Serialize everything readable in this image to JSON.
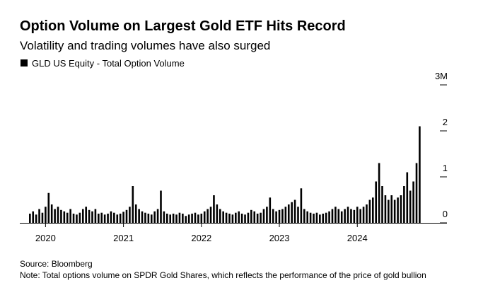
{
  "chart_data": {
    "type": "bar",
    "title": "Option Volume on Largest Gold ETF Hits Record",
    "subtitle": "Volatility and trading volumes have also surged",
    "source": "Source: Bloomberg",
    "note": "Note: Total options volume on SPDR Gold Shares, which reflects the performance of the price of gold bullion",
    "xlim": [
      2019.67,
      2025.15
    ],
    "xticks": [
      2020,
      2021,
      2022,
      2023,
      2024
    ],
    "ylim": [
      0,
      3
    ],
    "yticks": [
      0,
      1,
      2,
      {
        "value": 3,
        "label": "3M"
      }
    ],
    "series": [
      {
        "name": "GLD US Equity - Total Option Volume",
        "color": "#000000",
        "x": [
          2019.8,
          2019.84,
          2019.88,
          2019.92,
          2019.96,
          2020,
          2020.04,
          2020.08,
          2020.12,
          2020.16,
          2020.2,
          2020.24,
          2020.28,
          2020.32,
          2020.36,
          2020.4,
          2020.44,
          2020.48,
          2020.52,
          2020.56,
          2020.6,
          2020.64,
          2020.68,
          2020.72,
          2020.76,
          2020.8,
          2020.84,
          2020.88,
          2020.92,
          2020.96,
          2021,
          2021.04,
          2021.08,
          2021.12,
          2021.16,
          2021.2,
          2021.24,
          2021.28,
          2021.32,
          2021.36,
          2021.4,
          2021.44,
          2021.48,
          2021.52,
          2021.56,
          2021.6,
          2021.64,
          2021.68,
          2021.72,
          2021.76,
          2021.8,
          2021.84,
          2021.88,
          2021.92,
          2021.96,
          2022,
          2022.04,
          2022.08,
          2022.12,
          2022.16,
          2022.2,
          2022.24,
          2022.28,
          2022.32,
          2022.36,
          2022.4,
          2022.44,
          2022.48,
          2022.52,
          2022.56,
          2022.6,
          2022.64,
          2022.68,
          2022.72,
          2022.76,
          2022.8,
          2022.84,
          2022.88,
          2022.92,
          2022.96,
          2023,
          2023.04,
          2023.08,
          2023.12,
          2023.16,
          2023.2,
          2023.24,
          2023.28,
          2023.32,
          2023.36,
          2023.4,
          2023.44,
          2023.48,
          2023.52,
          2023.56,
          2023.6,
          2023.64,
          2023.68,
          2023.72,
          2023.76,
          2023.8,
          2023.84,
          2023.88,
          2023.92,
          2023.96,
          2024,
          2024.04,
          2024.08,
          2024.12,
          2024.16,
          2024.2,
          2024.24,
          2024.28,
          2024.32,
          2024.36,
          2024.4,
          2024.44,
          2024.48,
          2024.52,
          2024.56,
          2024.6,
          2024.64,
          2024.68,
          2024.72,
          2024.76,
          2024.8
        ],
        "values": [
          0.2,
          0.25,
          0.18,
          0.3,
          0.22,
          0.35,
          0.65,
          0.4,
          0.3,
          0.35,
          0.28,
          0.25,
          0.22,
          0.3,
          0.2,
          0.18,
          0.22,
          0.3,
          0.35,
          0.28,
          0.25,
          0.3,
          0.2,
          0.22,
          0.18,
          0.2,
          0.25,
          0.22,
          0.18,
          0.2,
          0.24,
          0.28,
          0.35,
          0.8,
          0.4,
          0.3,
          0.25,
          0.22,
          0.2,
          0.18,
          0.25,
          0.3,
          0.7,
          0.25,
          0.2,
          0.18,
          0.2,
          0.18,
          0.22,
          0.2,
          0.15,
          0.18,
          0.2,
          0.22,
          0.18,
          0.2,
          0.25,
          0.3,
          0.35,
          0.6,
          0.4,
          0.3,
          0.25,
          0.22,
          0.2,
          0.18,
          0.22,
          0.25,
          0.2,
          0.18,
          0.22,
          0.28,
          0.25,
          0.2,
          0.22,
          0.3,
          0.35,
          0.55,
          0.3,
          0.25,
          0.28,
          0.3,
          0.35,
          0.4,
          0.45,
          0.5,
          0.35,
          0.75,
          0.3,
          0.25,
          0.22,
          0.2,
          0.22,
          0.18,
          0.2,
          0.22,
          0.25,
          0.3,
          0.35,
          0.3,
          0.25,
          0.3,
          0.35,
          0.3,
          0.28,
          0.35,
          0.3,
          0.35,
          0.4,
          0.5,
          0.55,
          0.9,
          1.3,
          0.8,
          0.6,
          0.5,
          0.6,
          0.5,
          0.55,
          0.6,
          0.8,
          1.1,
          0.7,
          0.9,
          1.3,
          2.1
        ]
      }
    ]
  }
}
